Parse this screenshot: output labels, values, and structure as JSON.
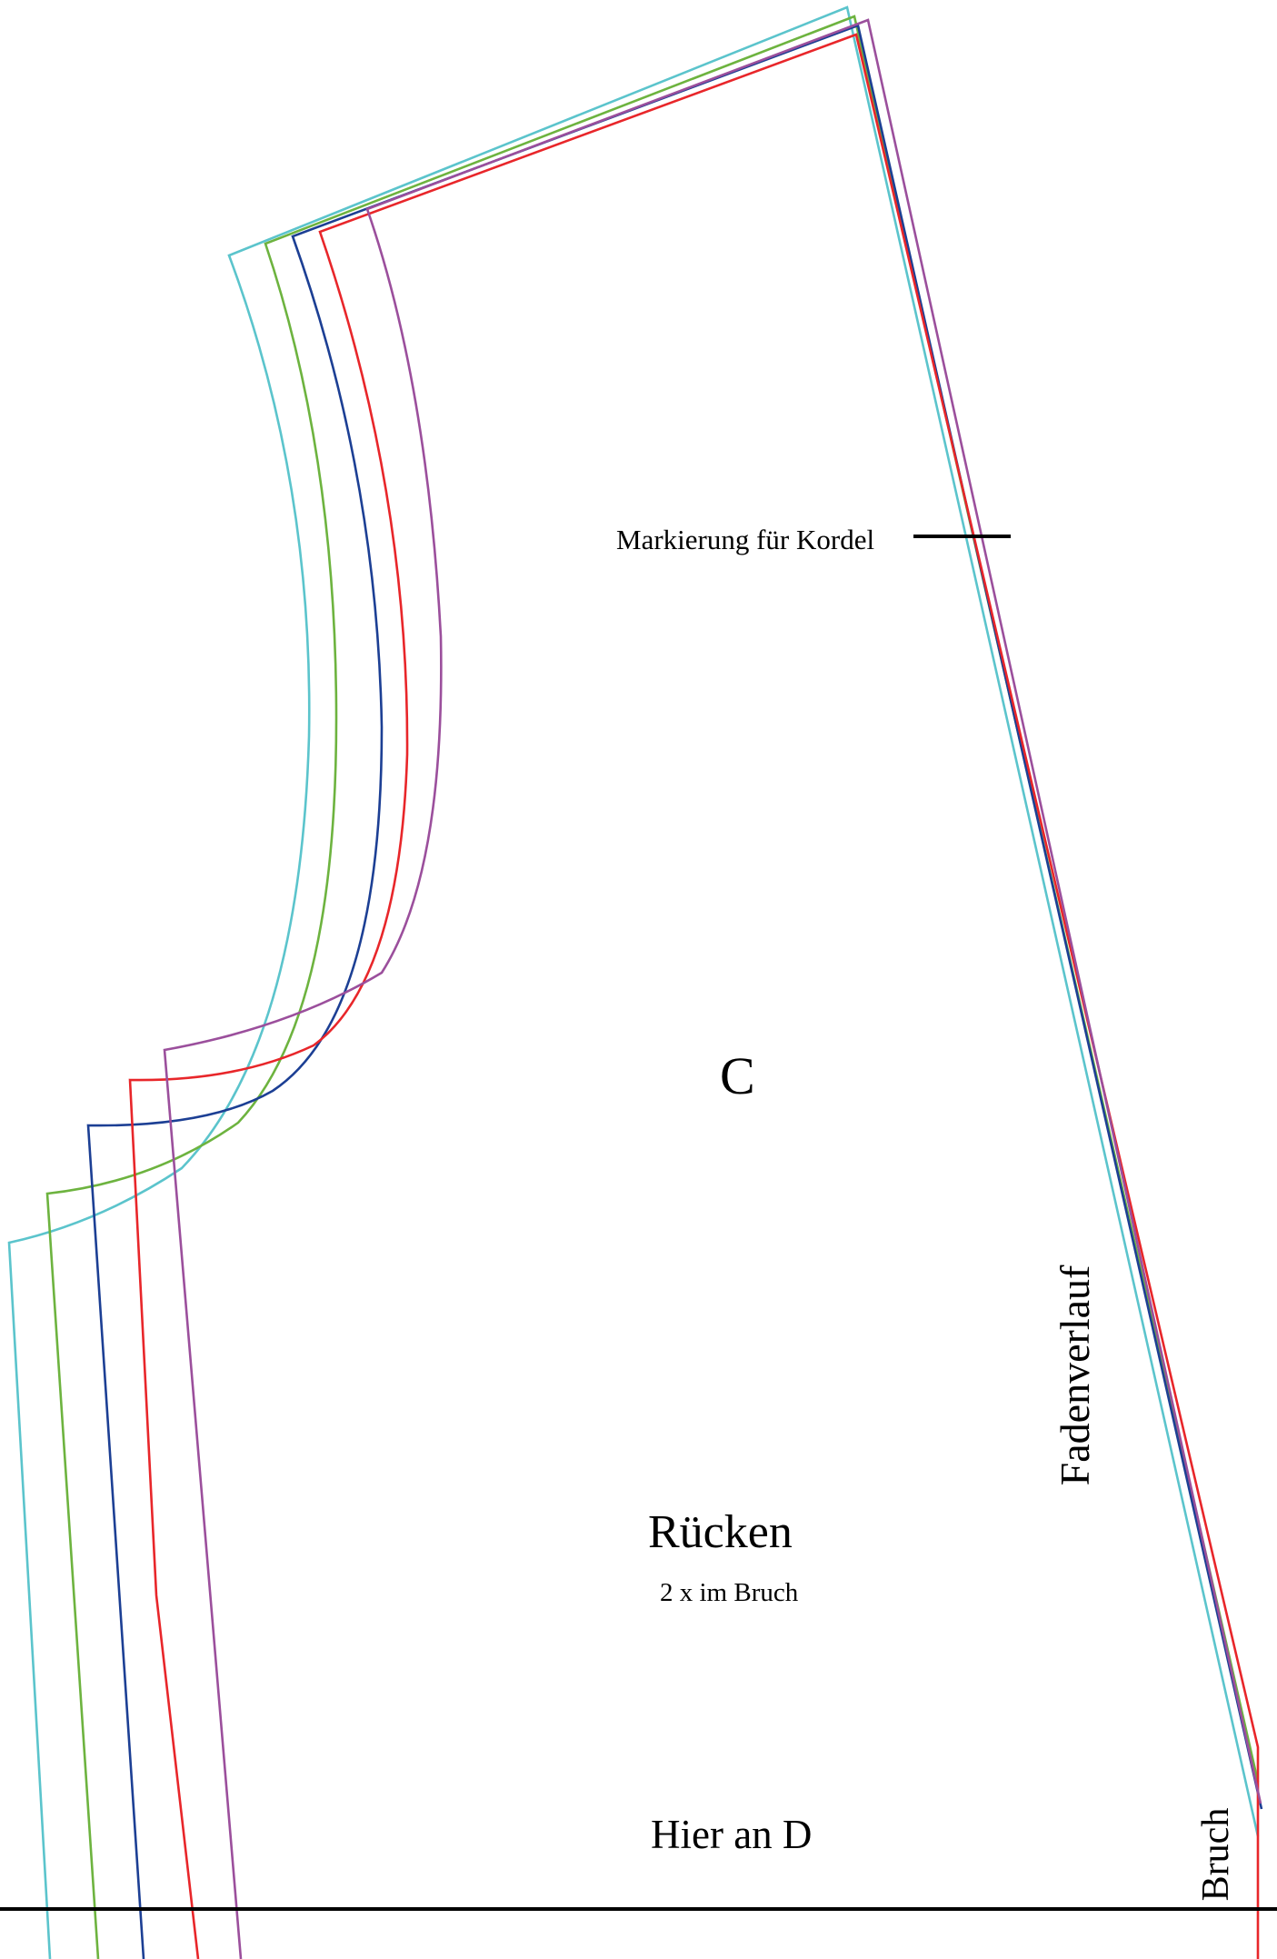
{
  "labels": {
    "marking": "Markierung für Kordel",
    "piece_letter": "C",
    "piece_name": "Rücken",
    "cut_instruction": "2 x im Bruch",
    "join_note": "Hier an D",
    "grain": "Fadenverlauf",
    "fold": "Bruch"
  },
  "size_lines": [
    {
      "name": "cyan",
      "color": "#5BC4CC"
    },
    {
      "name": "green",
      "color": "#6DB33F"
    },
    {
      "name": "blue",
      "color": "#1C3F94"
    },
    {
      "name": "red",
      "color": "#E8262A"
    },
    {
      "name": "purple",
      "color": "#9B4F9C"
    }
  ]
}
